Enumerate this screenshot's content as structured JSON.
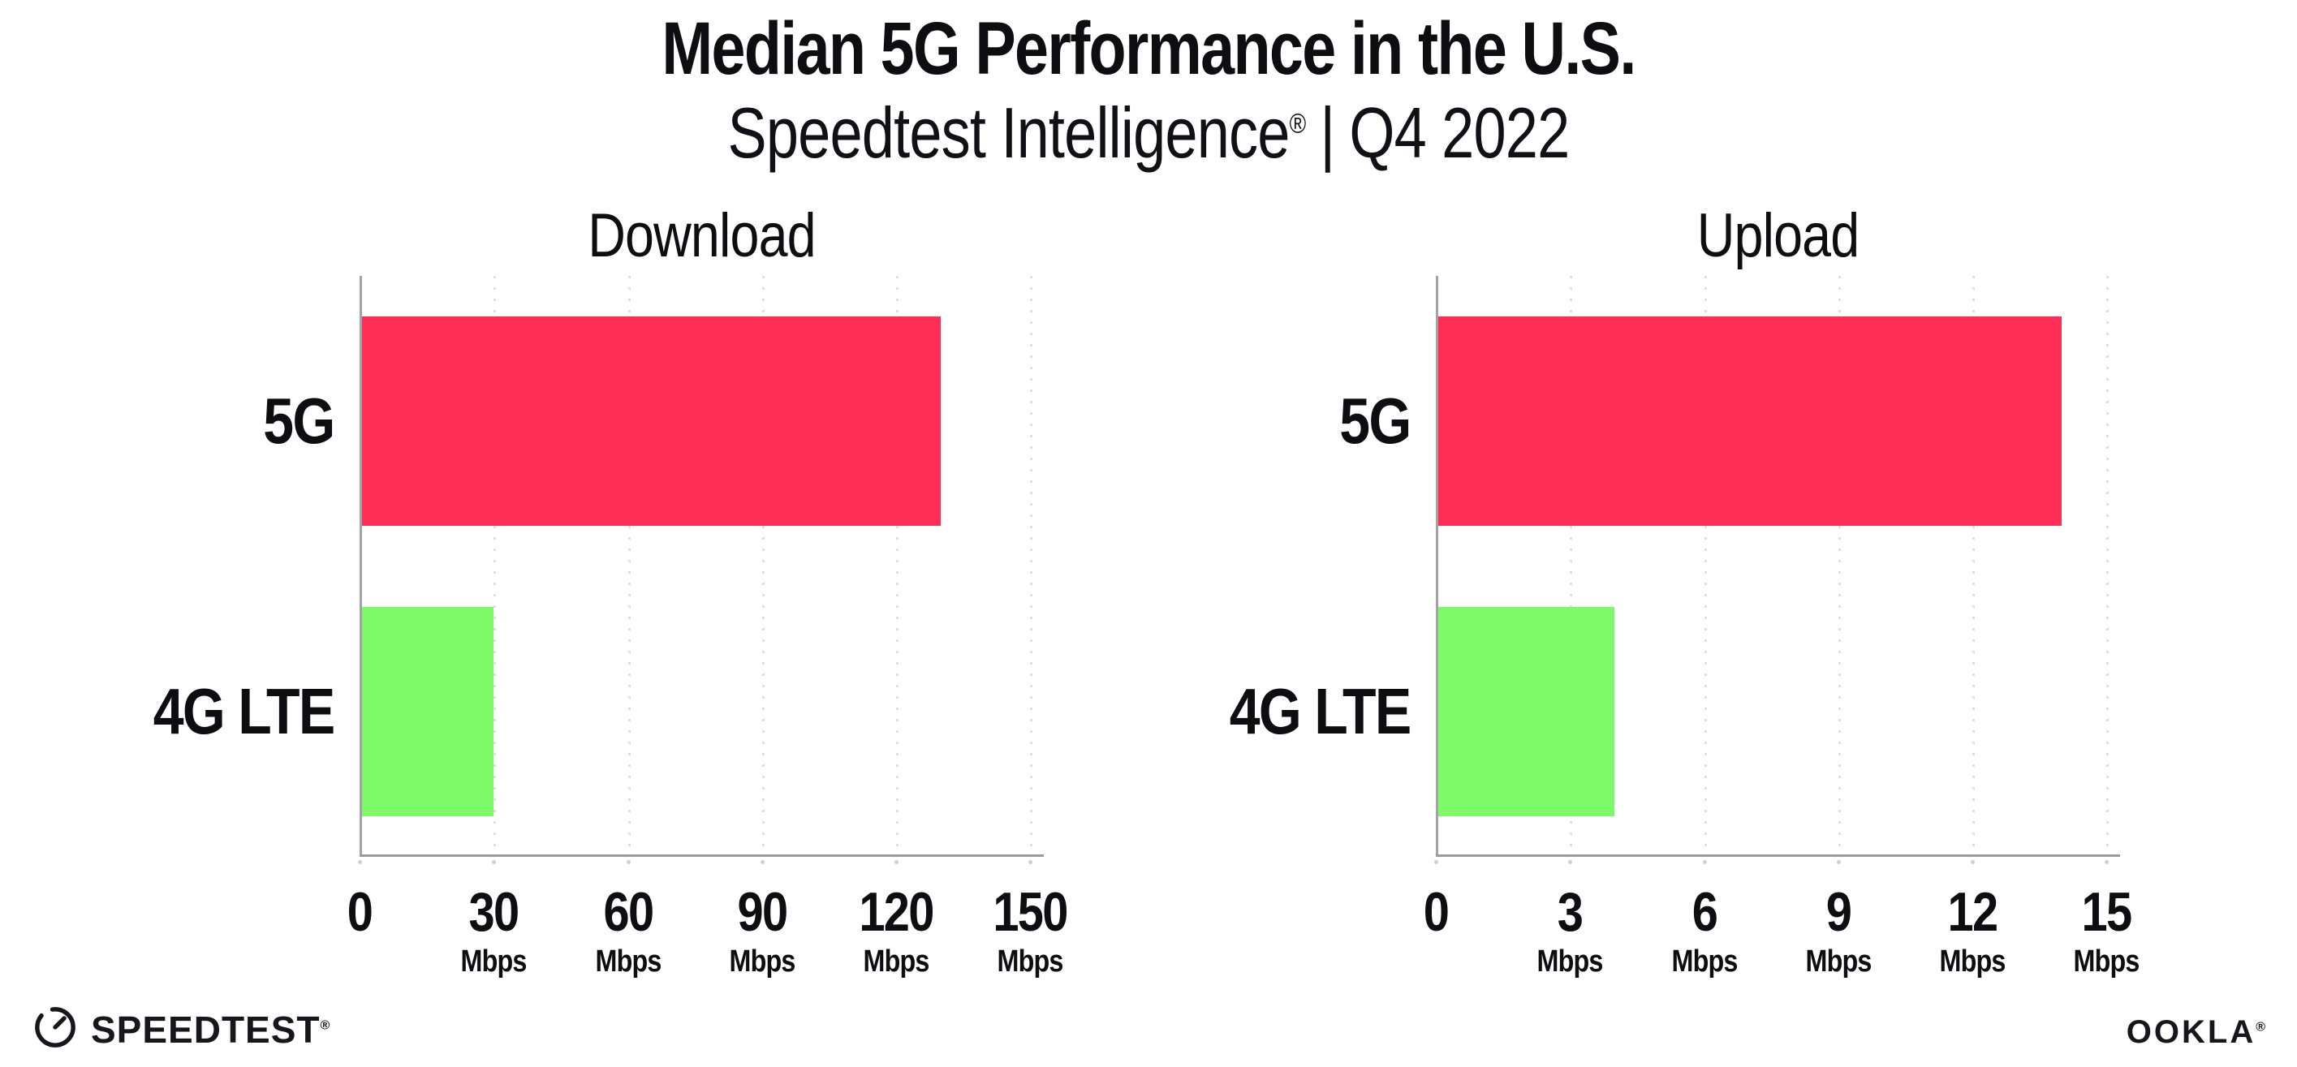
{
  "header": {
    "title": "Median 5G Performance in the U.S.",
    "subtitle_brand": "Speedtest Intelligence",
    "subtitle_reg": "®",
    "subtitle_separator": "|",
    "subtitle_period": "Q4 2022"
  },
  "colors": {
    "bar_5g": "#FF2E55",
    "bar_4g_lte": "#7EFA69",
    "text": "#0d0d12",
    "gridline": "#dedee6",
    "axis": "#9b9ba3"
  },
  "chart_data": [
    {
      "type": "bar",
      "orientation": "horizontal",
      "title": "Download",
      "categories": [
        "5G",
        "4G LTE"
      ],
      "values": [
        130,
        30
      ],
      "unit": "Mbps",
      "xlabel": "",
      "ylabel": "",
      "xlim": [
        0,
        153
      ],
      "ticks": [
        0,
        30,
        60,
        90,
        120,
        150
      ],
      "grid": "vertical-dotted",
      "legend": "none",
      "bar_colors": [
        "#FF2E55",
        "#7EFA69"
      ]
    },
    {
      "type": "bar",
      "orientation": "horizontal",
      "title": "Upload",
      "categories": [
        "5G",
        "4G LTE"
      ],
      "values": [
        14,
        4
      ],
      "unit": "Mbps",
      "xlabel": "",
      "ylabel": "",
      "xlim": [
        0,
        15.3
      ],
      "ticks": [
        0,
        3,
        6,
        9,
        12,
        15
      ],
      "grid": "vertical-dotted",
      "legend": "none",
      "bar_colors": [
        "#FF2E55",
        "#7EFA69"
      ]
    }
  ],
  "footer": {
    "speedtest_label": "SPEEDTEST",
    "speedtest_reg": "®",
    "speedtest_icon": "speedometer-gauge-icon",
    "ookla_label": "OOKLA",
    "ookla_reg": "®"
  }
}
